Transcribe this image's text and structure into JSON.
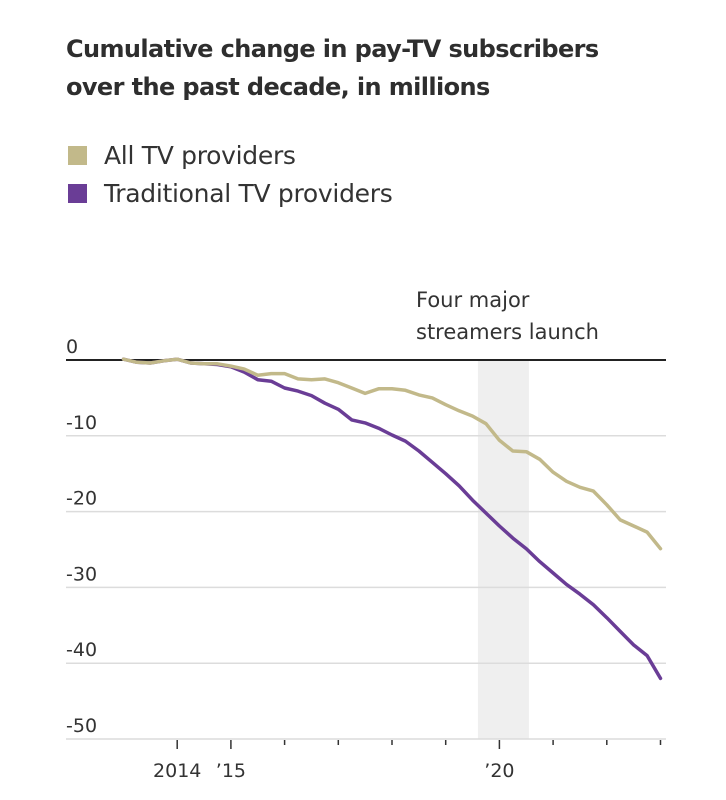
{
  "chart_data": {
    "type": "line",
    "title": "Cumulative change in pay-TV subscribers over the past decade, in millions",
    "title_lines": [
      "Cumulative change in pay-TV subscribers",
      "over the past decade, in millions"
    ],
    "xlabel": "",
    "ylabel": "",
    "x_unit": "quarter",
    "x_start": "2013 Q1",
    "x_end": "2023 Q1",
    "x_range": [
      2013.0,
      2023.0
    ],
    "ylim": [
      -50,
      0
    ],
    "y_ticks": [
      0,
      -10,
      -20,
      -30,
      -40,
      -50
    ],
    "y_tick_labels": [
      "0",
      "-10",
      "-20",
      "-30",
      "-40",
      "-50"
    ],
    "x_ticks": [
      2014,
      2015,
      2016,
      2017,
      2018,
      2019,
      2020,
      2021,
      2022,
      2023
    ],
    "x_tick_labels": [
      {
        "year": 2014,
        "label": "2014"
      },
      {
        "year": 2015,
        "label": "’15"
      },
      {
        "year": 2020,
        "label": "’20"
      }
    ],
    "grid": true,
    "legend_position": "top-left",
    "annotation": {
      "lines": [
        "Four major",
        "streamers launch"
      ],
      "shaded_range": [
        2019.6,
        2020.55
      ]
    },
    "series": [
      {
        "name": "All TV providers",
        "color": "#c2b98a",
        "values": [
          0.1,
          -0.3,
          -0.4,
          -0.1,
          0.1,
          -0.4,
          -0.5,
          -0.5,
          -0.8,
          -1.2,
          -2.0,
          -1.8,
          -1.8,
          -2.5,
          -2.6,
          -2.5,
          -3.0,
          -3.7,
          -4.4,
          -3.8,
          -3.8,
          -4.0,
          -4.6,
          -5.0,
          -5.9,
          -6.7,
          -7.4,
          -8.4,
          -10.6,
          -12.0,
          -12.1,
          -13.1,
          -14.8,
          -16.0,
          -16.8,
          -17.3,
          -19.1,
          -21.1,
          -21.9,
          -22.7,
          -24.9
        ]
      },
      {
        "name": "Traditional TV providers",
        "color": "#6a3d96",
        "values": [
          0.1,
          -0.3,
          -0.4,
          -0.1,
          0.1,
          -0.4,
          -0.5,
          -0.6,
          -0.9,
          -1.6,
          -2.6,
          -2.8,
          -3.7,
          -4.1,
          -4.7,
          -5.7,
          -6.5,
          -7.9,
          -8.3,
          -9.0,
          -9.9,
          -10.7,
          -12.0,
          -13.5,
          -15.0,
          -16.6,
          -18.5,
          -20.2,
          -21.9,
          -23.5,
          -24.9,
          -26.6,
          -28.1,
          -29.6,
          -30.9,
          -32.3,
          -34.0,
          -35.8,
          -37.6,
          -39.0,
          -42.0
        ]
      }
    ]
  }
}
